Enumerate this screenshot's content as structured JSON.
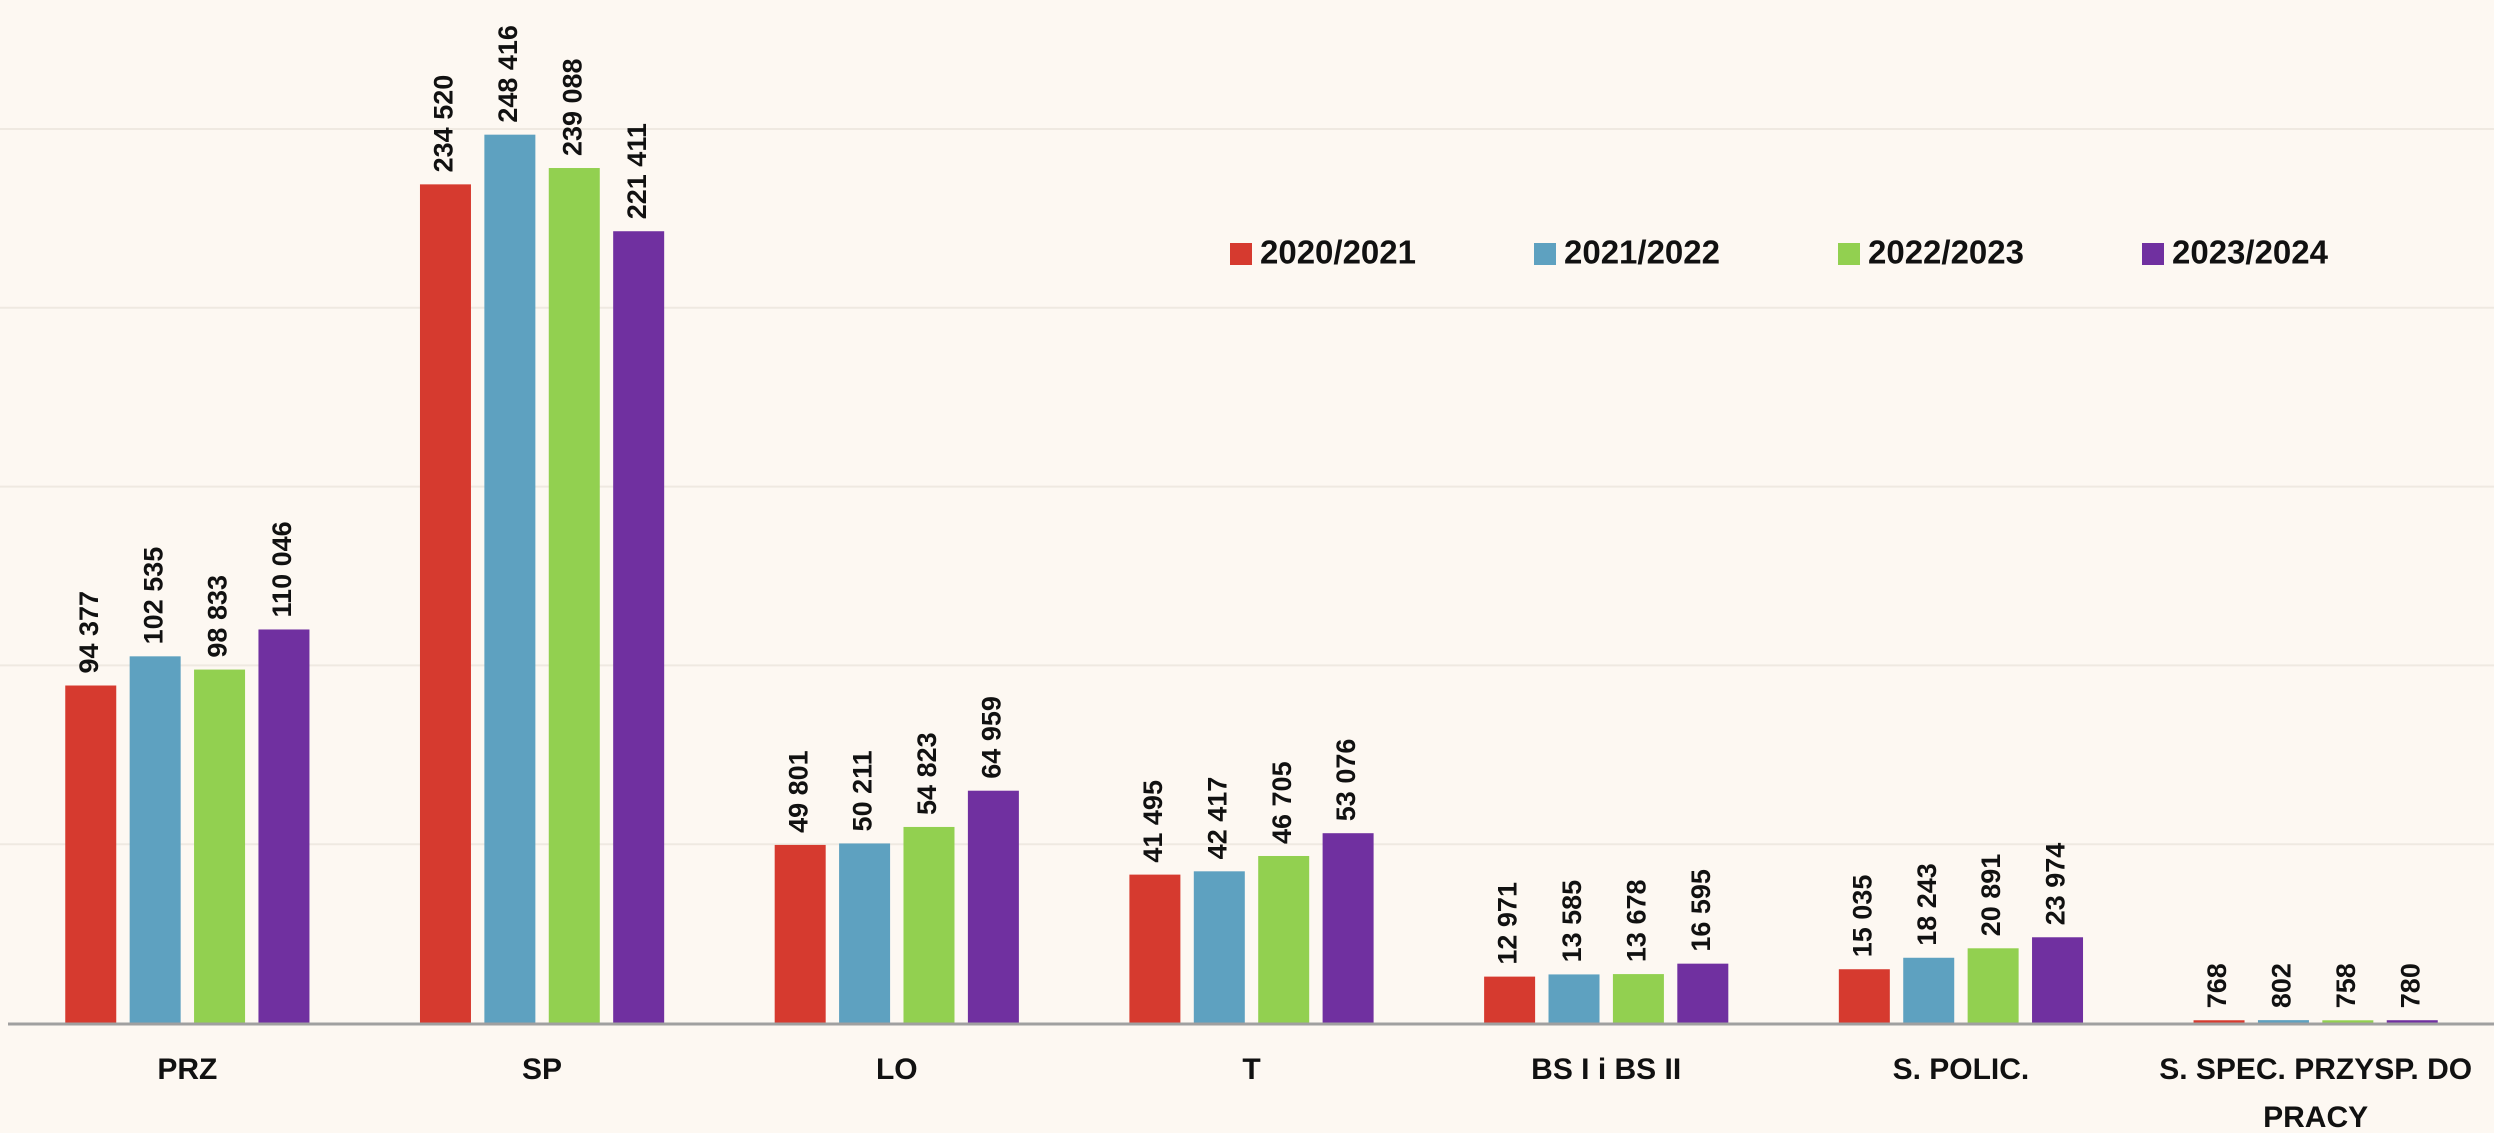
{
  "chart_data": {
    "type": "bar",
    "categories": [
      "PRZ",
      "SP",
      "LO",
      "T",
      "BS I i BS II",
      "S. POLIC.",
      "S. SPEC. PRZYSP. DO PRACY"
    ],
    "series": [
      {
        "name": "2020/2021",
        "color": "#d63a2f",
        "values": [
          94377,
          234520,
          49801,
          41495,
          12971,
          15035,
          768
        ],
        "value_labels": [
          "94 377",
          "234 520",
          "49 801",
          "41 495",
          "12 971",
          "15 035",
          "768"
        ]
      },
      {
        "name": "2021/2022",
        "color": "#5ea1c0",
        "values": [
          102535,
          248416,
          50211,
          42417,
          13585,
          18243,
          802
        ],
        "value_labels": [
          "102 535",
          "248 416",
          "50 211",
          "42 417",
          "13 585",
          "18 243",
          "802"
        ]
      },
      {
        "name": "2022/2023",
        "color": "#92d050",
        "values": [
          98833,
          239088,
          54823,
          46705,
          13678,
          20891,
          758
        ],
        "value_labels": [
          "98 833",
          "239 088",
          "54 823",
          "46 705",
          "13 678",
          "20 891",
          "758"
        ]
      },
      {
        "name": "2023/2024",
        "color": "#7030a0",
        "values": [
          110046,
          221411,
          64959,
          53076,
          16595,
          23974,
          780
        ],
        "value_labels": [
          "110 046",
          "221 411",
          "64 959",
          "53 076",
          "16 595",
          "23 974",
          "780"
        ]
      }
    ],
    "ylim": [
      0,
      250000
    ],
    "yticks": [
      0,
      50000,
      100000,
      150000,
      200000,
      250000
    ],
    "grid": true,
    "legend": "top-right"
  }
}
